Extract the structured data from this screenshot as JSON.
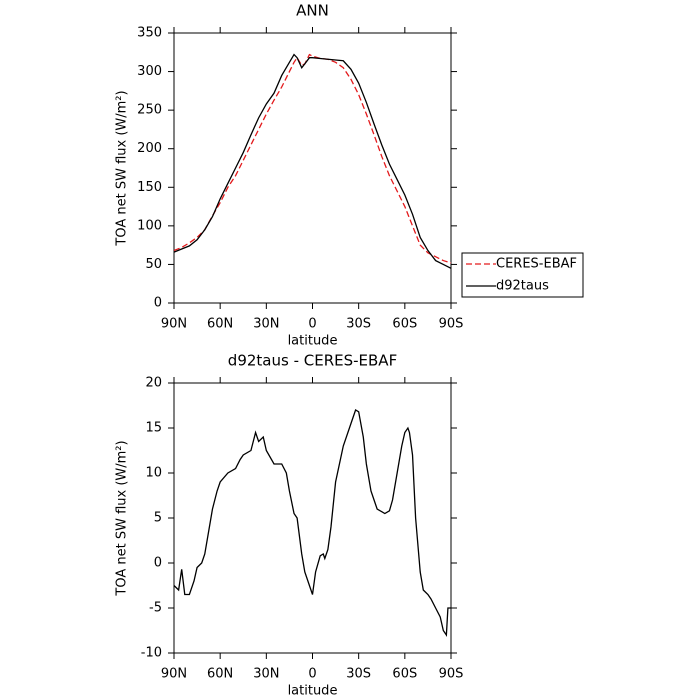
{
  "chart_data": [
    {
      "type": "line",
      "title": "ANN",
      "xlabel": "latitude",
      "ylabel": "TOA net SW flux (W/m²)",
      "x": [
        90,
        85,
        80,
        75,
        70,
        65,
        60,
        55,
        50,
        45,
        40,
        35,
        30,
        25,
        20,
        15,
        12,
        10,
        7,
        5,
        2,
        0,
        -5,
        -10,
        -15,
        -20,
        -25,
        -30,
        -35,
        -40,
        -45,
        -50,
        -55,
        -60,
        -65,
        -70,
        -75,
        -80,
        -85,
        -90
      ],
      "series": [
        {
          "name": "CERES-EBAF",
          "color": "#e31a1c",
          "dashed": true,
          "values": [
            68,
            72,
            78,
            85,
            95,
            113,
            130,
            150,
            165,
            185,
            205,
            225,
            245,
            263,
            280,
            300,
            312,
            318,
            308,
            310,
            322,
            320,
            317,
            316,
            312,
            305,
            290,
            270,
            245,
            218,
            190,
            165,
            145,
            125,
            100,
            75,
            65,
            60,
            55,
            52
          ]
        },
        {
          "name": "d92taus",
          "color": "#000000",
          "dashed": false,
          "values": [
            66,
            70,
            74,
            82,
            95,
            112,
            135,
            155,
            175,
            195,
            218,
            240,
            258,
            272,
            295,
            312,
            322,
            318,
            305,
            310,
            318,
            318,
            317,
            316,
            315,
            314,
            303,
            285,
            260,
            232,
            205,
            180,
            160,
            140,
            115,
            85,
            68,
            55,
            50,
            45
          ]
        }
      ],
      "xlim": [
        90,
        -90
      ],
      "xticks": [
        {
          "value": 90,
          "label": "90N"
        },
        {
          "value": 60,
          "label": "60N"
        },
        {
          "value": 30,
          "label": "30N"
        },
        0,
        {
          "value": -30,
          "label": "30S"
        },
        {
          "value": -60,
          "label": "60S"
        },
        {
          "value": -90,
          "label": "90S"
        }
      ],
      "ylim": [
        0,
        350
      ],
      "yticks": [
        0,
        50,
        100,
        150,
        200,
        250,
        300,
        350
      ],
      "legend": "right"
    },
    {
      "type": "line",
      "title": "d92taus - CERES-EBAF",
      "xlabel": "latitude",
      "ylabel": "TOA net SW flux (W/m²)",
      "x": [
        90,
        87,
        85,
        83,
        80,
        77,
        75,
        72,
        70,
        68,
        65,
        62,
        60,
        55,
        50,
        47,
        45,
        40,
        37,
        35,
        32,
        30,
        25,
        20,
        17,
        15,
        12,
        10,
        7,
        5,
        2,
        0,
        -2,
        -5,
        -7,
        -8,
        -10,
        -12,
        -15,
        -20,
        -25,
        -28,
        -30,
        -33,
        -35,
        -38,
        -40,
        -42,
        -45,
        -47,
        -50,
        -52,
        -55,
        -58,
        -60,
        -62,
        -63,
        -65,
        -67,
        -70,
        -72,
        -75,
        -77,
        -80,
        -83,
        -85,
        -87,
        -88,
        -90
      ],
      "values": [
        -2.5,
        -3,
        -0.7,
        -3.5,
        -3.5,
        -2,
        -0.5,
        0,
        1,
        3,
        6,
        8,
        9,
        10,
        10.5,
        11.5,
        12,
        12.5,
        14.5,
        13.5,
        14,
        12.5,
        11,
        11,
        10,
        8,
        5.5,
        5,
        1,
        -1,
        -2.5,
        -3.5,
        -1,
        0.8,
        1,
        0.5,
        1.5,
        4,
        9,
        13,
        15.5,
        17,
        16.8,
        14,
        11,
        8,
        7,
        6,
        5.7,
        5.5,
        5.8,
        7,
        10,
        13,
        14.5,
        15,
        14.5,
        12,
        5,
        -1,
        -3,
        -3.5,
        -4,
        -5,
        -6,
        -7.5,
        -8,
        -5,
        -5
      ],
      "color": "#000000",
      "xlim": [
        90,
        -90
      ],
      "xticks": [
        {
          "value": 90,
          "label": "90N"
        },
        {
          "value": 60,
          "label": "60N"
        },
        {
          "value": 30,
          "label": "30N"
        },
        0,
        {
          "value": -30,
          "label": "30S"
        },
        {
          "value": -60,
          "label": "60S"
        },
        {
          "value": -90,
          "label": "90S"
        }
      ],
      "ylim": [
        -10,
        20
      ],
      "yticks": [
        -10,
        -5,
        0,
        5,
        10,
        15,
        20
      ]
    }
  ]
}
